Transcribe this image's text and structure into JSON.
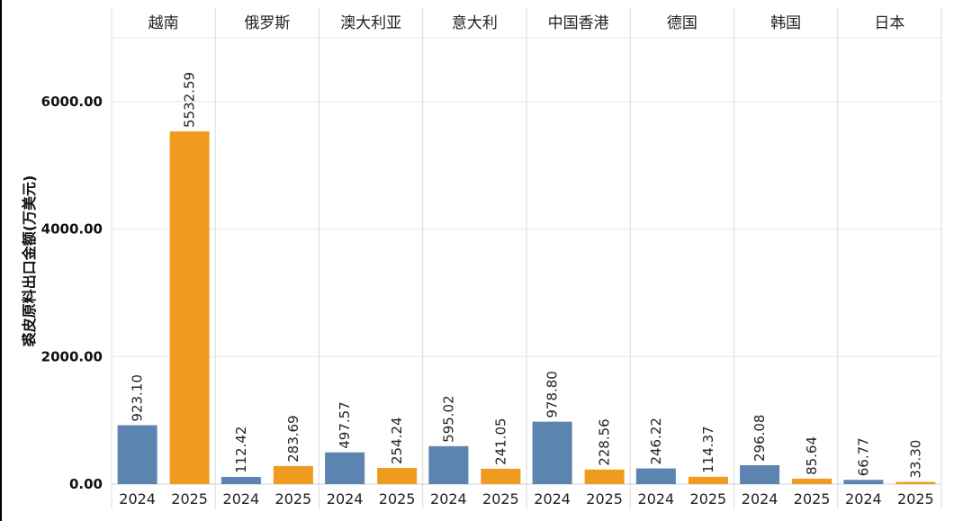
{
  "chart_data": {
    "type": "bar",
    "ylabel": "裘皮原料出口金额(万美元)",
    "ylim": [
      0,
      7000
    ],
    "yticks": [
      {
        "value": 0,
        "label": "0.00"
      },
      {
        "value": 2000,
        "label": "2000.00"
      },
      {
        "value": 4000,
        "label": "4000.00"
      },
      {
        "value": 6000,
        "label": "6000.00"
      }
    ],
    "categories": [
      "越南",
      "俄罗斯",
      "澳大利亚",
      "意大利",
      "中国香港",
      "德国",
      "韩国",
      "日本"
    ],
    "series": [
      {
        "name": "2024",
        "color": "#5b84b1",
        "values": [
          923.1,
          112.42,
          497.57,
          595.02,
          978.8,
          246.22,
          296.08,
          66.77
        ],
        "labels": [
          "923.10",
          "112.42",
          "497.57",
          "595.02",
          "978.80",
          "246.22",
          "296.08",
          "66.77"
        ]
      },
      {
        "name": "2025",
        "color": "#ef9b20",
        "values": [
          5532.59,
          283.69,
          254.24,
          241.05,
          228.56,
          114.37,
          85.64,
          33.3
        ],
        "labels": [
          "5532.59",
          "283.69",
          "254.24",
          "241.05",
          "228.56",
          "114.37",
          "85.64",
          "33.30"
        ]
      }
    ],
    "grid": true
  }
}
